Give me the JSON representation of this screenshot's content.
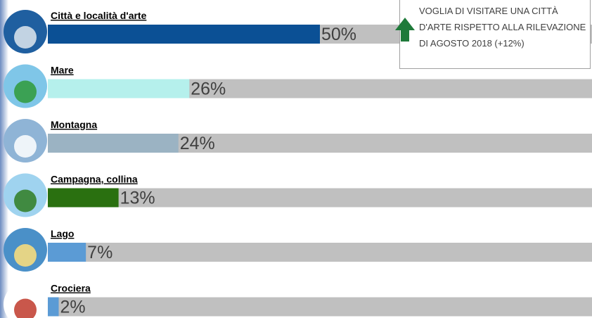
{
  "chart_data": {
    "type": "bar",
    "orientation": "horizontal",
    "categories": [
      "Città e località d'arte",
      "Mare",
      "Montagna",
      "Campagna, collina",
      "Lago",
      "Crociera"
    ],
    "values": [
      50,
      26,
      24,
      13,
      7,
      2
    ],
    "value_labels": [
      "50%",
      "26%",
      "24%",
      "13%",
      "7%",
      "2%"
    ],
    "colors": [
      "#0b5095",
      "#b5f0ec",
      "#9bb3c3",
      "#2a7010",
      "#5b9bd5",
      "#5b9bd5"
    ],
    "track_color": "#c0c0c0",
    "xlim": [
      0,
      100
    ],
    "annotation": "VOGLIA DI VISITARE UNA CITTÀ D'ARTE RISPETTO ALLA RILEVAZIONE DI AGOSTO 2018 (+12%)"
  }
}
